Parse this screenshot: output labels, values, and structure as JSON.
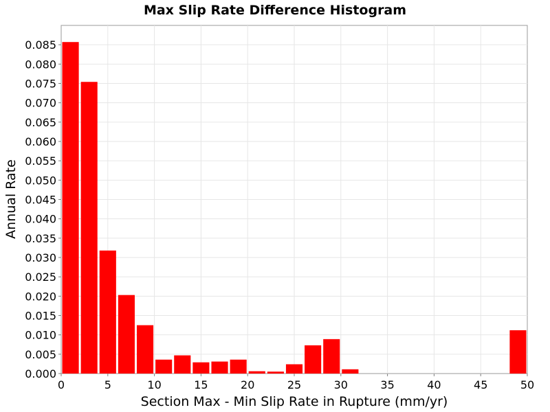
{
  "chart_data": {
    "type": "bar",
    "title": "Max Slip Rate Difference Histogram",
    "xlabel": "Section Max - Min Slip Rate in Rupture (mm/yr)",
    "ylabel": "Annual Rate",
    "xlim": [
      0,
      50
    ],
    "ylim": [
      0,
      0.09
    ],
    "bin_width": 2,
    "x_ticks": [
      0,
      5,
      10,
      15,
      20,
      25,
      30,
      35,
      40,
      45,
      50
    ],
    "y_ticks": [
      0.0,
      0.005,
      0.01,
      0.015,
      0.02,
      0.025,
      0.03,
      0.035,
      0.04,
      0.045,
      0.05,
      0.055,
      0.06,
      0.065,
      0.07,
      0.075,
      0.08,
      0.085
    ],
    "y_tick_labels": [
      "0.000",
      "0.005",
      "0.010",
      "0.015",
      "0.020",
      "0.025",
      "0.030",
      "0.035",
      "0.040",
      "0.045",
      "0.050",
      "0.055",
      "0.060",
      "0.065",
      "0.070",
      "0.075",
      "0.080",
      "0.085"
    ],
    "grid": true,
    "bar_color": "#ff0000",
    "bins": [
      {
        "x": 1,
        "value": 0.0857
      },
      {
        "x": 3,
        "value": 0.0754
      },
      {
        "x": 5,
        "value": 0.0318
      },
      {
        "x": 7,
        "value": 0.0203
      },
      {
        "x": 9,
        "value": 0.0125
      },
      {
        "x": 11,
        "value": 0.0036
      },
      {
        "x": 13,
        "value": 0.0047
      },
      {
        "x": 15,
        "value": 0.0029
      },
      {
        "x": 17,
        "value": 0.0031
      },
      {
        "x": 19,
        "value": 0.0036
      },
      {
        "x": 21,
        "value": 0.0006
      },
      {
        "x": 23,
        "value": 0.0005
      },
      {
        "x": 25,
        "value": 0.0024
      },
      {
        "x": 27,
        "value": 0.0073
      },
      {
        "x": 29,
        "value": 0.0089
      },
      {
        "x": 31,
        "value": 0.0011
      },
      {
        "x": 49,
        "value": 0.0112
      }
    ]
  }
}
